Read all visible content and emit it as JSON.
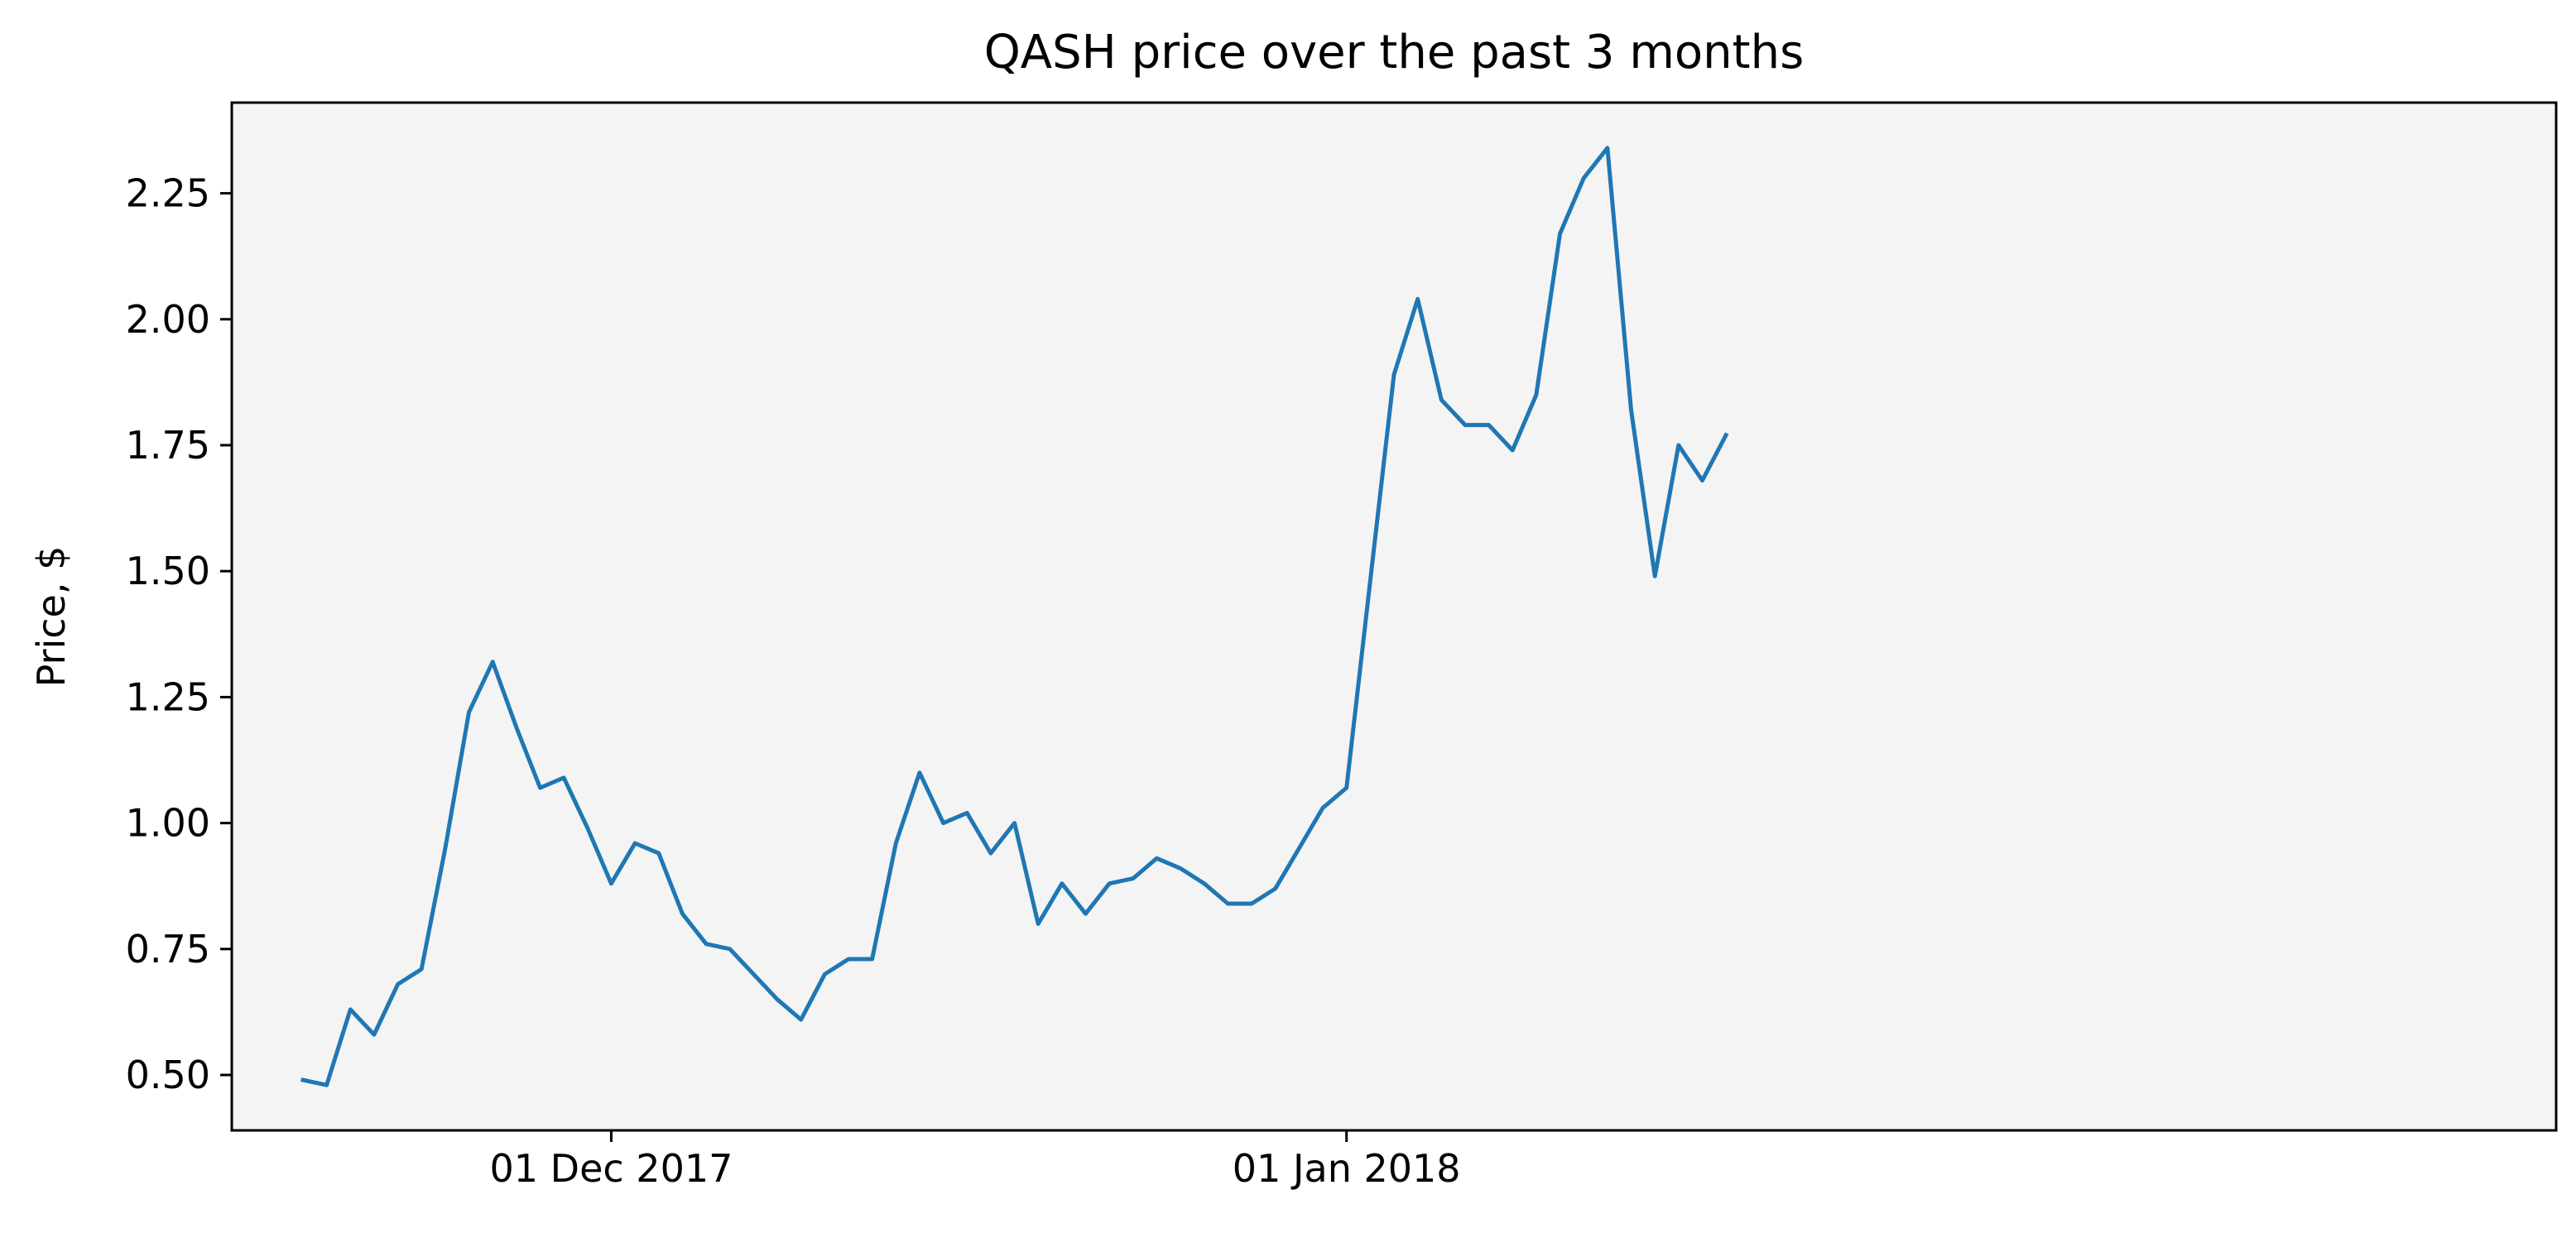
{
  "chart_data": {
    "type": "line",
    "title": "QASH price over the past 3 months",
    "xlabel": "",
    "ylabel": "Price, $",
    "x_ticks": [
      {
        "date": "2017-12-01",
        "label": "01 Dec 2017"
      },
      {
        "date": "2018-01-01",
        "label": "01 Jan 2018"
      }
    ],
    "xlim": [
      "2017-11-15",
      "2018-02-21"
    ],
    "ylim": [
      0.39,
      2.43
    ],
    "y_ticks": [
      "0.50",
      "0.75",
      "1.00",
      "1.25",
      "1.50",
      "1.75",
      "2.00",
      "2.25"
    ],
    "grid": false,
    "colors": {
      "line": "#1f77b4",
      "plot_background": "#f4f4f4",
      "axes": "#000000"
    },
    "series": [
      {
        "values": [
          [
            "2017-11-18",
            0.49
          ],
          [
            "2017-11-19",
            0.48
          ],
          [
            "2017-11-20",
            0.63
          ],
          [
            "2017-11-21",
            0.58
          ],
          [
            "2017-11-22",
            0.68
          ],
          [
            "2017-11-23",
            0.71
          ],
          [
            "2017-11-24",
            0.95
          ],
          [
            "2017-11-25",
            1.22
          ],
          [
            "2017-11-26",
            1.32
          ],
          [
            "2017-11-27",
            1.19
          ],
          [
            "2017-11-28",
            1.07
          ],
          [
            "2017-11-29",
            1.09
          ],
          [
            "2017-11-30",
            0.99
          ],
          [
            "2017-12-01",
            0.88
          ],
          [
            "2017-12-02",
            0.96
          ],
          [
            "2017-12-03",
            0.94
          ],
          [
            "2017-12-04",
            0.82
          ],
          [
            "2017-12-05",
            0.76
          ],
          [
            "2017-12-06",
            0.75
          ],
          [
            "2017-12-07",
            0.7
          ],
          [
            "2017-12-08",
            0.65
          ],
          [
            "2017-12-09",
            0.61
          ],
          [
            "2017-12-10",
            0.7
          ],
          [
            "2017-12-11",
            0.73
          ],
          [
            "2017-12-12",
            0.73
          ],
          [
            "2017-12-13",
            0.96
          ],
          [
            "2017-12-14",
            1.1
          ],
          [
            "2017-12-15",
            1.0
          ],
          [
            "2017-12-16",
            1.02
          ],
          [
            "2017-12-17",
            0.94
          ],
          [
            "2017-12-18",
            1.0
          ],
          [
            "2017-12-19",
            0.8
          ],
          [
            "2017-12-20",
            0.88
          ],
          [
            "2017-12-21",
            0.82
          ],
          [
            "2017-12-22",
            0.88
          ],
          [
            "2017-12-23",
            0.89
          ],
          [
            "2017-12-24",
            0.93
          ],
          [
            "2017-12-25",
            0.91
          ],
          [
            "2017-12-26",
            0.88
          ],
          [
            "2017-12-27",
            0.84
          ],
          [
            "2017-12-28",
            0.84
          ],
          [
            "2017-12-29",
            0.87
          ],
          [
            "2017-12-30",
            0.95
          ],
          [
            "2017-12-31",
            1.03
          ],
          [
            "2018-01-01",
            1.07
          ],
          [
            "2018-01-02",
            1.48
          ],
          [
            "2018-01-03",
            1.89
          ],
          [
            "2018-01-04",
            2.04
          ],
          [
            "2018-01-05",
            1.84
          ],
          [
            "2018-01-06",
            1.79
          ],
          [
            "2018-01-07",
            1.79
          ],
          [
            "2018-01-08",
            1.74
          ],
          [
            "2018-01-09",
            1.85
          ],
          [
            "2018-01-10",
            2.17
          ],
          [
            "2018-01-11",
            2.28
          ],
          [
            "2018-01-12",
            2.34
          ],
          [
            "2018-01-13",
            1.82
          ],
          [
            "2018-01-14",
            1.49
          ],
          [
            "2018-01-15",
            1.75
          ],
          [
            "2018-01-16",
            1.68
          ],
          [
            "2018-01-17",
            1.77
          ]
        ]
      }
    ]
  }
}
